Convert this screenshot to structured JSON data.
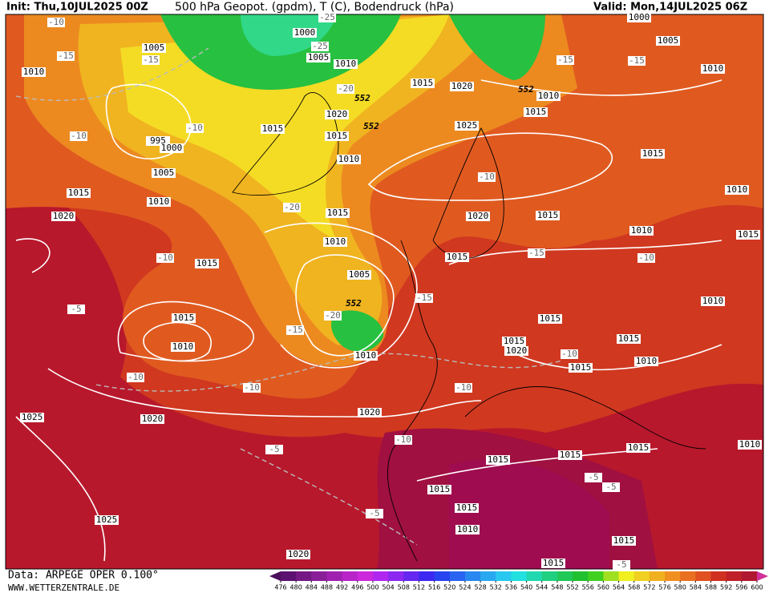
{
  "header": {
    "init": "Init: Thu,10JUL2025 00Z",
    "title": "500 hPa Geopot. (gpdm), T (C), Bodendruck (hPa)",
    "valid": "Valid: Mon,14JUL2025 06Z"
  },
  "footer": {
    "data": "Data: ARPEGE OPER 0.100°",
    "site": "WWW.WETTERZENTRALE.DE"
  },
  "colorbar": {
    "ticks": [
      476,
      480,
      484,
      488,
      492,
      496,
      500,
      504,
      508,
      512,
      516,
      520,
      524,
      528,
      532,
      536,
      540,
      544,
      548,
      552,
      556,
      560,
      564,
      568,
      572,
      576,
      580,
      584,
      588,
      592,
      596,
      600
    ],
    "colors": [
      "#5c1070",
      "#741884",
      "#8a1e99",
      "#a020b0",
      "#b824c8",
      "#cc28dc",
      "#b028f0",
      "#8c28f0",
      "#6428f0",
      "#3c28f0",
      "#2844f0",
      "#2864f0",
      "#2888f0",
      "#28a8f0",
      "#28c8f0",
      "#20e0e0",
      "#20d8b0",
      "#20d080",
      "#20c858",
      "#20c030",
      "#40d020",
      "#a0e020",
      "#f0f020",
      "#f0d020",
      "#f0b020",
      "#f09020",
      "#e87020",
      "#e05020",
      "#d03020",
      "#c02028",
      "#b01830"
    ],
    "end_colors": [
      "#4a0f5a",
      "#d0309a"
    ]
  },
  "map_labels": {
    "pressure": [
      "1000",
      "1005",
      "1010",
      "1005",
      "1010",
      "995",
      "1000",
      "1005",
      "1015",
      "1010",
      "1020",
      "1015",
      "1020",
      "1015",
      "1010",
      "1015",
      "1010",
      "1015",
      "1005",
      "1010",
      "1015",
      "1010",
      "1020",
      "1025",
      "1025",
      "1020",
      "1020",
      "1015",
      "1020",
      "1025",
      "1020",
      "1015",
      "1015",
      "1015",
      "1015",
      "1020",
      "1015",
      "1015",
      "1010",
      "1010",
      "1015",
      "1015",
      "1010",
      "1010",
      "1005",
      "1000",
      "1010",
      "1015",
      "1010",
      "1010",
      "1015",
      "1015",
      "1015",
      "1015",
      "1015",
      "1010",
      "1015",
      "1015"
    ],
    "temperature": [
      "-10",
      "-15",
      "-15",
      "-10",
      "-10",
      "-20",
      "-10",
      "-5",
      "-15",
      "-20",
      "-10",
      "-10",
      "-10",
      "-10",
      "-5",
      "-5",
      "-15",
      "-15",
      "-10",
      "-10",
      "-15",
      "-15",
      "-10",
      "-5",
      "-5",
      "-5",
      "-20",
      "-25",
      "-25"
    ],
    "geopotential": [
      "552",
      "552",
      "552",
      "552"
    ]
  }
}
